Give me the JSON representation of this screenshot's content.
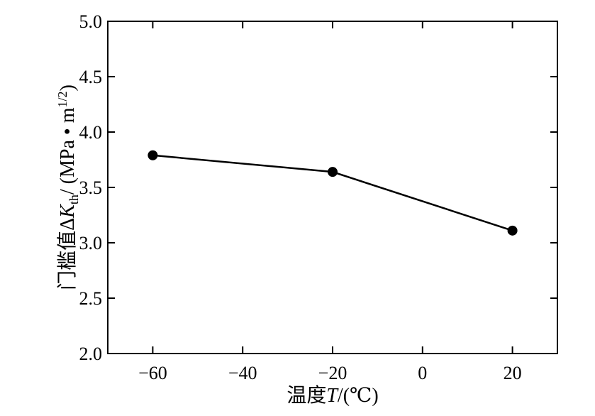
{
  "chart_data": {
    "type": "line",
    "title": "",
    "xlabel": "温度T/(℃)",
    "ylabel": "门槛值ΔKth/ (MPa • m1/2)",
    "xlabel_parts": {
      "prefix": "温度",
      "var": "T",
      "suffix": "/(℃)"
    },
    "ylabel_parts": {
      "prefix": "门槛值Δ",
      "var": "K",
      "sub": "th",
      "mid": "/ (MPa • m",
      "sup": "1/2",
      "suffix": ")"
    },
    "xlim": [
      -70,
      30
    ],
    "ylim": [
      2.0,
      5.0
    ],
    "x_ticks": [
      -60,
      -40,
      -20,
      0,
      20
    ],
    "x_tick_labels": [
      "−60",
      "−40",
      "−20",
      "0",
      "20"
    ],
    "y_ticks": [
      2.0,
      2.5,
      3.0,
      3.5,
      4.0,
      4.5,
      5.0
    ],
    "y_tick_labels": [
      "2.0",
      "2.5",
      "3.0",
      "3.5",
      "4.0",
      "4.5",
      "5.0"
    ],
    "grid": false,
    "series": [
      {
        "x": [
          -60,
          -20,
          20
        ],
        "y": [
          3.79,
          3.64,
          3.11
        ]
      }
    ]
  }
}
